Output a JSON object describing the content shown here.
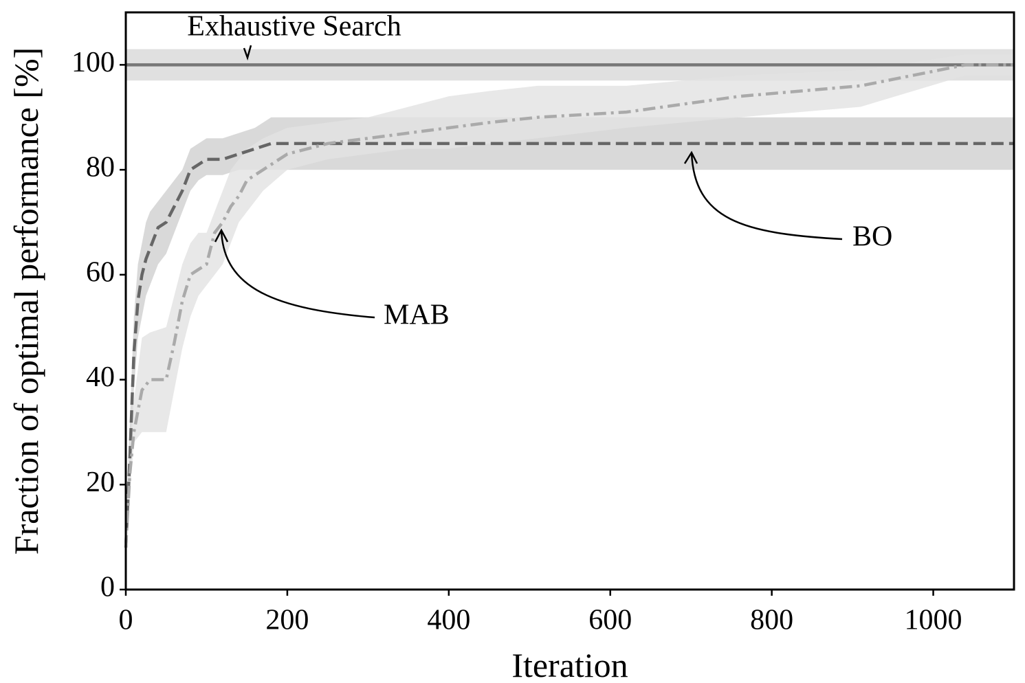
{
  "chart_data": {
    "type": "line",
    "xlabel": "Iteration",
    "ylabel": "Fraction of optimal performance [%]",
    "xlim": [
      0,
      1100
    ],
    "ylim": [
      0,
      110
    ],
    "xticks": [
      0,
      200,
      400,
      600,
      800,
      1000
    ],
    "yticks": [
      0,
      20,
      40,
      60,
      80,
      100
    ],
    "annotations": [
      "Exhaustive Search",
      "BO",
      "MAB"
    ],
    "series": [
      {
        "color": "#777777",
        "band_color": "#d8d8d8",
        "dash": "solid",
        "x": [
          0,
          1100
        ],
        "values": [
          100,
          100
        ],
        "lower": [
          97,
          97
        ],
        "upper": [
          103,
          103
        ]
      },
      {
        "color": "#666666",
        "band_color": "#cfcfcf",
        "dash": "dashed",
        "x": [
          0,
          5,
          10,
          15,
          20,
          25,
          30,
          40,
          50,
          60,
          70,
          80,
          90,
          100,
          120,
          140,
          160,
          180,
          1100
        ],
        "values": [
          8,
          25,
          45,
          55,
          60,
          63,
          65,
          69,
          70,
          73,
          76,
          80,
          81,
          82,
          82,
          83,
          84,
          85,
          85
        ],
        "lower": [
          5,
          18,
          38,
          48,
          52,
          56,
          58,
          62,
          64,
          68,
          72,
          76,
          78,
          79,
          79,
          80,
          80,
          80,
          80
        ],
        "upper": [
          12,
          32,
          52,
          62,
          66,
          70,
          72,
          74,
          76,
          78,
          80,
          84,
          85,
          86,
          86,
          87,
          88,
          90,
          90
        ]
      },
      {
        "color": "#aaaaaa",
        "band_color": "#e2e2e2",
        "dash": "dashdot",
        "x": [
          0,
          5,
          10,
          20,
          30,
          50,
          60,
          70,
          80,
          90,
          100,
          110,
          120,
          130,
          140,
          150,
          170,
          200,
          250,
          300,
          350,
          400,
          450,
          510,
          620,
          760,
          910,
          1040,
          1100
        ],
        "values": [
          8,
          22,
          30,
          38,
          40,
          40,
          47,
          55,
          60,
          61,
          62,
          68,
          70,
          73,
          75,
          78,
          80,
          83,
          85,
          86,
          87,
          88,
          89,
          90,
          91,
          94,
          96,
          100,
          100
        ],
        "lower": [
          5,
          18,
          28,
          30,
          30,
          30,
          38,
          46,
          52,
          56,
          58,
          60,
          62,
          66,
          70,
          72,
          76,
          80,
          82,
          83,
          84,
          84,
          85,
          86,
          88,
          90,
          92,
          98,
          98
        ],
        "upper": [
          12,
          28,
          36,
          48,
          49,
          50,
          56,
          62,
          66,
          68,
          68,
          72,
          76,
          80,
          82,
          84,
          86,
          88,
          89,
          90,
          92,
          94,
          95,
          96,
          96,
          98,
          99,
          102,
          102
        ]
      }
    ]
  }
}
